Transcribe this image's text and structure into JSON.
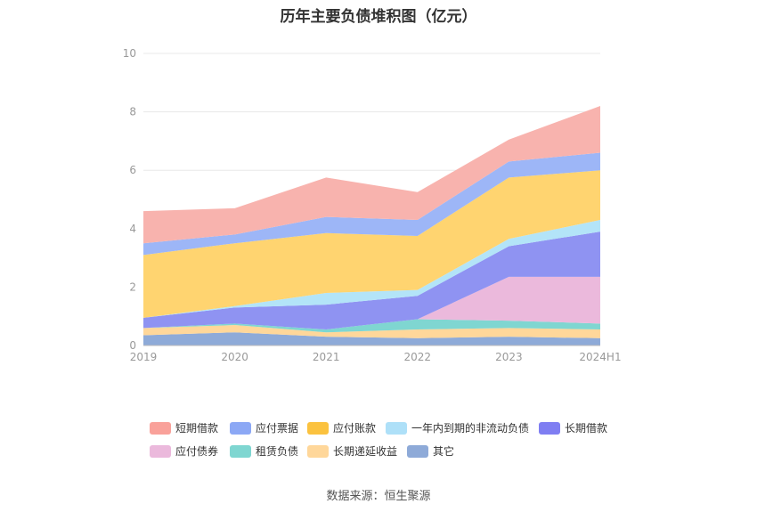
{
  "title": "历年主要负债堆积图（亿元）",
  "source": "数据来源：恒生聚源",
  "chart_data": {
    "type": "area",
    "stacked": true,
    "categories": [
      "2019",
      "2020",
      "2021",
      "2022",
      "2023",
      "2024H1"
    ],
    "ylim": [
      0,
      10
    ],
    "yticks": [
      0,
      2,
      4,
      6,
      8,
      10
    ],
    "grid": true,
    "legend_position": "bottom",
    "series": [
      {
        "name": "其它",
        "color": "#8eaad8",
        "values": [
          0.35,
          0.45,
          0.3,
          0.25,
          0.3,
          0.25
        ]
      },
      {
        "name": "长期递延收益",
        "color": "#ffd79a",
        "values": [
          0.25,
          0.25,
          0.15,
          0.3,
          0.3,
          0.3
        ]
      },
      {
        "name": "租赁负债",
        "color": "#7fd6d1",
        "values": [
          0.0,
          0.05,
          0.1,
          0.35,
          0.25,
          0.2
        ]
      },
      {
        "name": "应付债券",
        "color": "#ebb9dc",
        "values": [
          0.0,
          0.0,
          0.0,
          0.0,
          1.5,
          1.6
        ]
      },
      {
        "name": "长期借款",
        "color": "#8f93f2",
        "values": [
          0.35,
          0.55,
          0.85,
          0.8,
          1.05,
          1.55
        ]
      },
      {
        "name": "一年内到期的非流动负债",
        "color": "#b3e4f8",
        "values": [
          0.0,
          0.05,
          0.4,
          0.2,
          0.25,
          0.4
        ]
      },
      {
        "name": "应付账款",
        "color": "#ffd470",
        "values": [
          2.15,
          2.15,
          2.05,
          1.85,
          2.1,
          1.7
        ]
      },
      {
        "name": "应付票据",
        "color": "#9db6f7",
        "values": [
          0.4,
          0.3,
          0.55,
          0.55,
          0.55,
          0.6
        ]
      },
      {
        "name": "短期借款",
        "color": "#f8b3ae",
        "values": [
          1.1,
          0.9,
          1.35,
          0.95,
          0.75,
          1.6
        ]
      }
    ]
  },
  "legend": {
    "row1": [
      {
        "label": "短期借款",
        "color": "#f9a19a"
      },
      {
        "label": "应付票据",
        "color": "#8ca8f5"
      },
      {
        "label": "应付账款",
        "color": "#fbc23f"
      },
      {
        "label": "一年内到期的非流动负债",
        "color": "#aee0f8"
      },
      {
        "label": "长期借款",
        "color": "#7f7ef2"
      }
    ],
    "row2": [
      {
        "label": "应付债券",
        "color": "#ebb9dc"
      },
      {
        "label": "租赁负债",
        "color": "#7fd6d1"
      },
      {
        "label": "长期递延收益",
        "color": "#ffd79a"
      },
      {
        "label": "其它",
        "color": "#8eaad8"
      }
    ]
  }
}
